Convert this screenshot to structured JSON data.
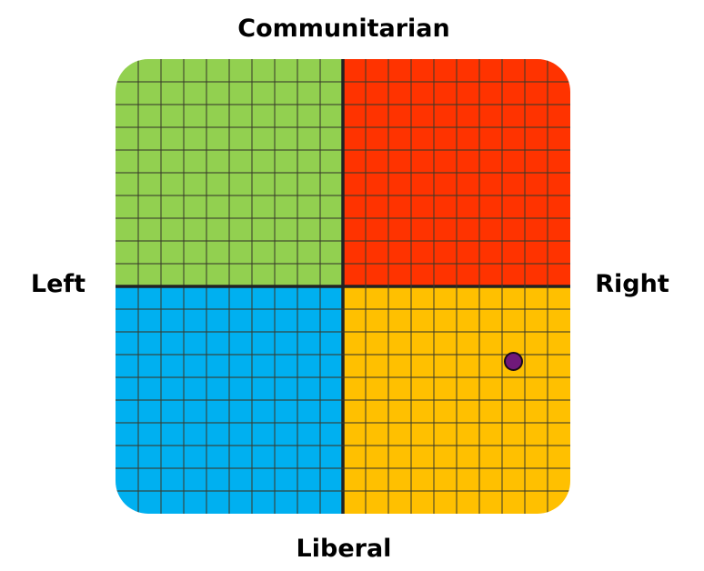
{
  "chart_data": {
    "type": "scatter",
    "title": "",
    "axis_labels": {
      "top": "Communitarian",
      "bottom": "Liberal",
      "left": "Left",
      "right": "Right"
    },
    "xlim": [
      -10,
      10
    ],
    "ylim": [
      -10,
      10
    ],
    "grid": true,
    "grid_divisions": 20,
    "quadrants": {
      "top_left": "#92d050",
      "top_right": "#ff3300",
      "bottom_left": "#00b0f0",
      "bottom_right": "#ffc000"
    },
    "points": [
      {
        "x": 7.5,
        "y": -3.3,
        "color": "#70197a"
      }
    ]
  }
}
